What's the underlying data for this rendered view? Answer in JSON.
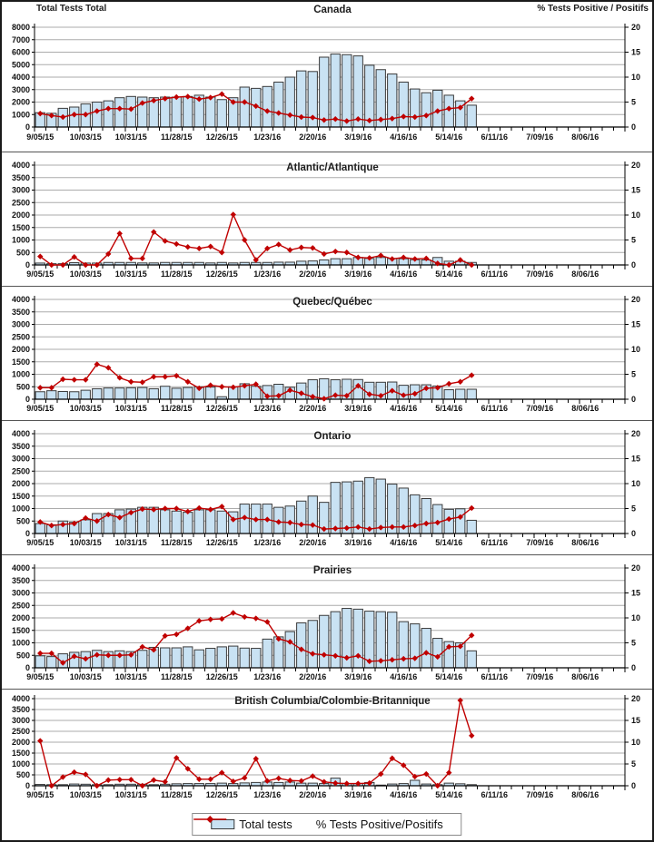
{
  "page": {
    "left_axis_title": "Total Tests Total",
    "right_axis_title": "% Tests Positive / Positifs"
  },
  "legend": {
    "bar_label": "Total tests",
    "line_label": "% Tests Positive/Positifs"
  },
  "colors": {
    "bar_fill": "#C9E2F3",
    "bar_stroke": "#3A3A3A",
    "line": "#C00000",
    "grid": "#ABABAB",
    "axis": "#000000",
    "text": "#111111"
  },
  "x_axis": {
    "tick_labels": [
      "9/05/15",
      "10/03/15",
      "10/31/15",
      "11/28/15",
      "12/26/15",
      "1/23/16",
      "2/20/16",
      "3/19/16",
      "4/16/16",
      "5/14/16",
      "6/11/16",
      "7/09/16",
      "8/06/16"
    ],
    "weeks_total": 52,
    "label_every": 4
  },
  "right_axis": {
    "min": 0,
    "max": 20,
    "ticks": [
      0,
      5,
      10,
      15,
      20
    ]
  },
  "chart_data": [
    {
      "type": "bar+line",
      "title": "Canada",
      "ylabel": "Total Tests",
      "y2label": "% Tests Positive / Positifs",
      "ylim": [
        0,
        8000
      ],
      "ystep": 1000,
      "y2lim": [
        0,
        20
      ],
      "bars": [
        1150,
        1100,
        1500,
        1600,
        1850,
        2000,
        2100,
        2350,
        2450,
        2400,
        2350,
        2400,
        2400,
        2450,
        2550,
        2400,
        2200,
        2350,
        3200,
        3100,
        3250,
        3600,
        4000,
        4500,
        4450,
        5600,
        5850,
        5800,
        5700,
        4950,
        4600,
        4250,
        3600,
        3050,
        2750,
        2950,
        2550,
        2100,
        1750
      ],
      "pct_positive": [
        2.7,
        2.3,
        2.0,
        2.5,
        2.5,
        3.2,
        3.7,
        3.7,
        3.6,
        4.8,
        5.3,
        5.7,
        6.0,
        6.1,
        5.6,
        5.9,
        6.6,
        5.0,
        5.0,
        4.2,
        3.2,
        2.8,
        2.4,
        2.0,
        1.9,
        1.4,
        1.6,
        1.2,
        1.6,
        1.3,
        1.5,
        1.7,
        2.1,
        2.0,
        2.3,
        3.2,
        3.7,
        3.9,
        5.7
      ]
    },
    {
      "type": "bar+line",
      "title": "Atlantic/Atlantique",
      "ylim": [
        0,
        4000
      ],
      "ystep": 500,
      "y2lim": [
        0,
        20
      ],
      "bars": [
        75,
        50,
        50,
        90,
        75,
        75,
        100,
        100,
        100,
        80,
        80,
        100,
        100,
        100,
        100,
        80,
        100,
        80,
        100,
        100,
        100,
        110,
        110,
        150,
        160,
        200,
        250,
        250,
        300,
        260,
        300,
        260,
        250,
        210,
        200,
        300,
        150,
        150,
        100
      ],
      "pct_positive": [
        1.7,
        0,
        0,
        1.6,
        0,
        0,
        2.2,
        6.3,
        1.3,
        1.3,
        6.6,
        4.8,
        4.2,
        3.6,
        3.3,
        3.7,
        2.5,
        10.1,
        5.0,
        1.0,
        3.3,
        4.1,
        3.0,
        3.5,
        3.4,
        2.2,
        2.7,
        2.5,
        1.5,
        1.4,
        1.9,
        1.2,
        1.5,
        1.2,
        1.3,
        0.3,
        0,
        1.0,
        0
      ]
    },
    {
      "type": "bar+line",
      "title": "Quebec/Québec",
      "ylim": [
        0,
        4000
      ],
      "ystep": 500,
      "y2lim": [
        0,
        20
      ],
      "bars": [
        300,
        340,
        310,
        300,
        360,
        420,
        450,
        450,
        460,
        470,
        420,
        520,
        440,
        470,
        500,
        490,
        100,
        500,
        620,
        520,
        550,
        600,
        480,
        650,
        780,
        820,
        780,
        800,
        790,
        680,
        680,
        690,
        560,
        580,
        580,
        530,
        380,
        400,
        400
      ],
      "pct_positive": [
        2.3,
        2.3,
        4.0,
        3.9,
        3.9,
        7.0,
        6.3,
        4.3,
        3.5,
        3.4,
        4.5,
        4.5,
        4.7,
        3.5,
        2.2,
        2.8,
        2.5,
        2.4,
        2.7,
        3.0,
        0.6,
        0.7,
        1.8,
        1.2,
        0.5,
        0.1,
        0.8,
        0.7,
        2.7,
        1.0,
        0.7,
        1.7,
        0.8,
        1.1,
        2.2,
        2.3,
        3.1,
        3.5,
        4.8
      ]
    },
    {
      "type": "bar+line",
      "title": "Ontario",
      "ylim": [
        0,
        4000
      ],
      "ystep": 500,
      "y2lim": [
        0,
        20
      ],
      "bars": [
        400,
        350,
        500,
        450,
        550,
        800,
        800,
        950,
        980,
        1050,
        1050,
        950,
        900,
        850,
        950,
        950,
        900,
        870,
        1180,
        1180,
        1180,
        1050,
        1100,
        1300,
        1500,
        1250,
        2050,
        2070,
        2100,
        2240,
        2180,
        1980,
        1820,
        1550,
        1400,
        1160,
        970,
        990,
        530
      ],
      "pct_positive": [
        2.3,
        1.6,
        1.8,
        2.0,
        3.1,
        2.5,
        3.8,
        3.2,
        4.2,
        4.9,
        4.8,
        5.0,
        5.0,
        4.4,
        5.1,
        4.8,
        5.4,
        2.8,
        3.2,
        2.8,
        2.8,
        2.3,
        2.2,
        1.8,
        1.7,
        0.9,
        1.0,
        1.1,
        1.3,
        0.9,
        1.2,
        1.3,
        1.3,
        1.6,
        2.0,
        2.2,
        2.9,
        3.3,
        5.1
      ]
    },
    {
      "type": "bar+line",
      "title": "Prairies",
      "ylim": [
        0,
        4000
      ],
      "ystep": 500,
      "y2lim": [
        0,
        20
      ],
      "bars": [
        480,
        450,
        560,
        620,
        650,
        700,
        650,
        680,
        650,
        700,
        820,
        800,
        800,
        840,
        720,
        780,
        840,
        870,
        790,
        780,
        1150,
        1240,
        1450,
        1800,
        1900,
        2100,
        2250,
        2380,
        2350,
        2270,
        2250,
        2230,
        1850,
        1760,
        1580,
        1180,
        1050,
        1000,
        680
      ],
      "pct_positive": [
        2.9,
        2.9,
        1.0,
        2.3,
        1.8,
        2.6,
        2.5,
        2.5,
        2.6,
        4.2,
        3.6,
        6.4,
        6.7,
        7.9,
        9.4,
        9.7,
        9.8,
        11.0,
        10.2,
        9.9,
        9.2,
        5.8,
        5.2,
        3.7,
        2.8,
        2.6,
        2.4,
        2.0,
        2.4,
        1.3,
        1.4,
        1.6,
        1.8,
        1.9,
        3.0,
        2.2,
        4.2,
        4.3,
        6.5
      ]
    },
    {
      "type": "bar+line",
      "title": "British Columbia/Colombie-Britannique",
      "ylim": [
        0,
        4000
      ],
      "ystep": 500,
      "y2lim": [
        0,
        20
      ],
      "bars": [
        60,
        50,
        50,
        80,
        70,
        50,
        50,
        70,
        70,
        70,
        50,
        70,
        90,
        100,
        100,
        100,
        120,
        100,
        130,
        150,
        170,
        150,
        170,
        120,
        120,
        100,
        350,
        100,
        100,
        150,
        30,
        80,
        100,
        250,
        80,
        50,
        120,
        90,
        50
      ],
      "pct_positive": [
        10.3,
        0,
        2.0,
        3.1,
        2.6,
        0,
        1.3,
        1.4,
        1.4,
        0,
        1.3,
        0.9,
        6.4,
        3.9,
        1.5,
        1.5,
        3.0,
        1.0,
        1.8,
        6.2,
        1.1,
        1.7,
        1.2,
        1.1,
        2.2,
        0.9,
        0.6,
        0.5,
        0.5,
        0.6,
        2.7,
        6.3,
        4.7,
        2.1,
        2.7,
        0,
        3.0,
        19.6,
        11.5
      ]
    }
  ]
}
